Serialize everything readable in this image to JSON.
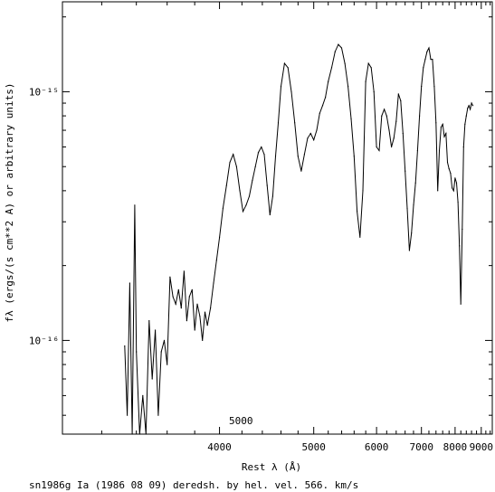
{
  "chart_data": {
    "type": "line",
    "xlabel": "Rest λ (Å)",
    "ylabel": "fλ (ergs/(s cm**2 A) or arbitrary units)",
    "caption": "sn1986g Ia (1986 08 09) deredsh. by hel. vel.   566. km/s",
    "annotation": "5000",
    "xscale": "reciprocal",
    "xlim": [
      3000,
      9500
    ],
    "yscale": "log",
    "ylim": [
      4.2e-17,
      2.3e-15
    ],
    "grid": false,
    "x_ticks": [
      {
        "value": 4000,
        "label": "4000"
      },
      {
        "value": 5000,
        "label": "5000"
      },
      {
        "value": 6000,
        "label": "6000"
      },
      {
        "value": 7000,
        "label": "7000"
      },
      {
        "value": 8000,
        "label": "8000"
      },
      {
        "value": 9000,
        "label": "9000"
      }
    ],
    "y_ticks": [
      {
        "value": 1e-16,
        "label": "10⁻¹⁶"
      },
      {
        "value": 1e-15,
        "label": "10⁻¹⁵"
      }
    ],
    "series": [
      {
        "color": "#000000",
        "x": [
          3330,
          3345,
          3360,
          3375,
          3390,
          3400,
          3420,
          3440,
          3460,
          3480,
          3500,
          3520,
          3540,
          3560,
          3580,
          3600,
          3620,
          3640,
          3660,
          3680,
          3700,
          3720,
          3740,
          3760,
          3780,
          3800,
          3820,
          3840,
          3860,
          3880,
          3900,
          3925,
          3950,
          3975,
          4000,
          4030,
          4060,
          4090,
          4120,
          4150,
          4180,
          4210,
          4240,
          4270,
          4300,
          4330,
          4360,
          4390,
          4420,
          4450,
          4480,
          4510,
          4540,
          4570,
          4600,
          4640,
          4680,
          4720,
          4760,
          4800,
          4840,
          4880,
          4920,
          4960,
          5000,
          5040,
          5080,
          5120,
          5160,
          5200,
          5250,
          5300,
          5350,
          5400,
          5450,
          5500,
          5550,
          5600,
          5650,
          5700,
          5750,
          5800,
          5850,
          5900,
          5950,
          6000,
          6050,
          6100,
          6150,
          6200,
          6250,
          6300,
          6350,
          6400,
          6450,
          6500,
          6550,
          6600,
          6650,
          6700,
          6750,
          6800,
          6850,
          6900,
          6950,
          7000,
          7050,
          7100,
          7150,
          7200,
          7250,
          7300,
          7350,
          7400,
          7450,
          7500,
          7550,
          7600,
          7650,
          7700,
          7750,
          7800,
          7850,
          7900,
          7950,
          8000,
          8050,
          8100,
          8150,
          8200,
          8250,
          8300,
          8350,
          8400,
          8450,
          8500,
          8550,
          8600,
          8650
        ],
        "y": [
          9.5e-17,
          5e-17,
          1.7e-16,
          4e-17,
          3.5e-16,
          9e-17,
          4e-17,
          6e-17,
          3e-17,
          1.2e-16,
          7e-17,
          1.1e-16,
          5e-17,
          9e-17,
          1e-16,
          8e-17,
          1.8e-16,
          1.5e-16,
          1.4e-16,
          1.6e-16,
          1.35e-16,
          1.9e-16,
          1.2e-16,
          1.5e-16,
          1.6e-16,
          1.1e-16,
          1.4e-16,
          1.25e-16,
          1e-16,
          1.3e-16,
          1.15e-16,
          1.35e-16,
          1.7e-16,
          2.1e-16,
          2.6e-16,
          3.4e-16,
          4.2e-16,
          5.2e-16,
          5.6e-16,
          5e-16,
          4e-16,
          3.3e-16,
          3.5e-16,
          3.8e-16,
          4.4e-16,
          5e-16,
          5.7e-16,
          6e-16,
          5.6e-16,
          4.2e-16,
          3.2e-16,
          3.8e-16,
          5.5e-16,
          7.5e-16,
          1.05e-15,
          1.3e-15,
          1.25e-15,
          1e-15,
          7.5e-16,
          5.5e-16,
          4.8e-16,
          5.6e-16,
          6.5e-16,
          6.8e-16,
          6.4e-16,
          7e-16,
          8.2e-16,
          8.8e-16,
          9.5e-16,
          1.1e-15,
          1.25e-15,
          1.45e-15,
          1.55e-15,
          1.5e-15,
          1.3e-15,
          1.05e-15,
          7.8e-16,
          5.5e-16,
          3.3e-16,
          2.6e-16,
          4e-16,
          1.1e-15,
          1.3e-15,
          1.25e-15,
          1e-15,
          6e-16,
          5.8e-16,
          8e-16,
          8.5e-16,
          8e-16,
          7e-16,
          6e-16,
          6.5e-16,
          7.6e-16,
          9.8e-16,
          9.2e-16,
          6.8e-16,
          4.8e-16,
          3.4e-16,
          2.3e-16,
          2.7e-16,
          3.5e-16,
          4.3e-16,
          5.8e-16,
          8e-16,
          1.05e-15,
          1.25e-15,
          1.35e-15,
          1.45e-15,
          1.5e-15,
          1.35e-15,
          1.35e-15,
          1.05e-15,
          7.5e-16,
          4e-16,
          5.8e-16,
          7.2e-16,
          7.4e-16,
          6.6e-16,
          6.8e-16,
          5.2e-16,
          4.9e-16,
          4.7e-16,
          4.1e-16,
          4e-16,
          4.5e-16,
          4.3e-16,
          3.6e-16,
          2.4e-16,
          1.4e-16,
          2.8e-16,
          6e-16,
          7.4e-16,
          8e-16,
          8.6e-16,
          8.8e-16,
          8.5e-16,
          9e-16,
          8.8e-16
        ]
      }
    ]
  }
}
